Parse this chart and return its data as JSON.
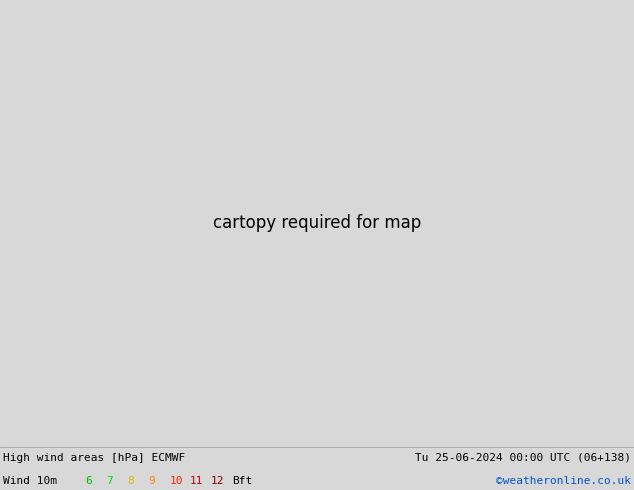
{
  "title_left": "High wind areas [hPa] ECMWF",
  "title_right": "Tu 25-06-2024 00:00 UTC (06+138)",
  "subtitle_left": "Wind 10m",
  "wind_scale_labels": [
    "6",
    "7",
    "8",
    "9",
    "10",
    "11",
    "12",
    "Bft"
  ],
  "wind_scale_colors": [
    "#00bb00",
    "#00dd00",
    "#ddbb00",
    "#ff8800",
    "#ff2200",
    "#cc0000",
    "#880000",
    "#000000"
  ],
  "copyright": "©weatheronline.co.uk",
  "copyright_color": "#0055cc",
  "footer_bg": "#d8d8d8",
  "footer_text_color": "#000000",
  "sea_color": "#c8c8c8",
  "land_color": "#aad48a",
  "land_gray_color": "#b0b0a0",
  "fig_width": 6.34,
  "fig_height": 4.9,
  "dpi": 100,
  "map_extent": [
    -25,
    45,
    30,
    75
  ],
  "blue_isobar_color": "#0000cc",
  "red_isobar_color": "#dd0000",
  "black_isobar_color": "#000000",
  "isobar_lw_thin": 0.9,
  "isobar_lw_thick": 2.0
}
